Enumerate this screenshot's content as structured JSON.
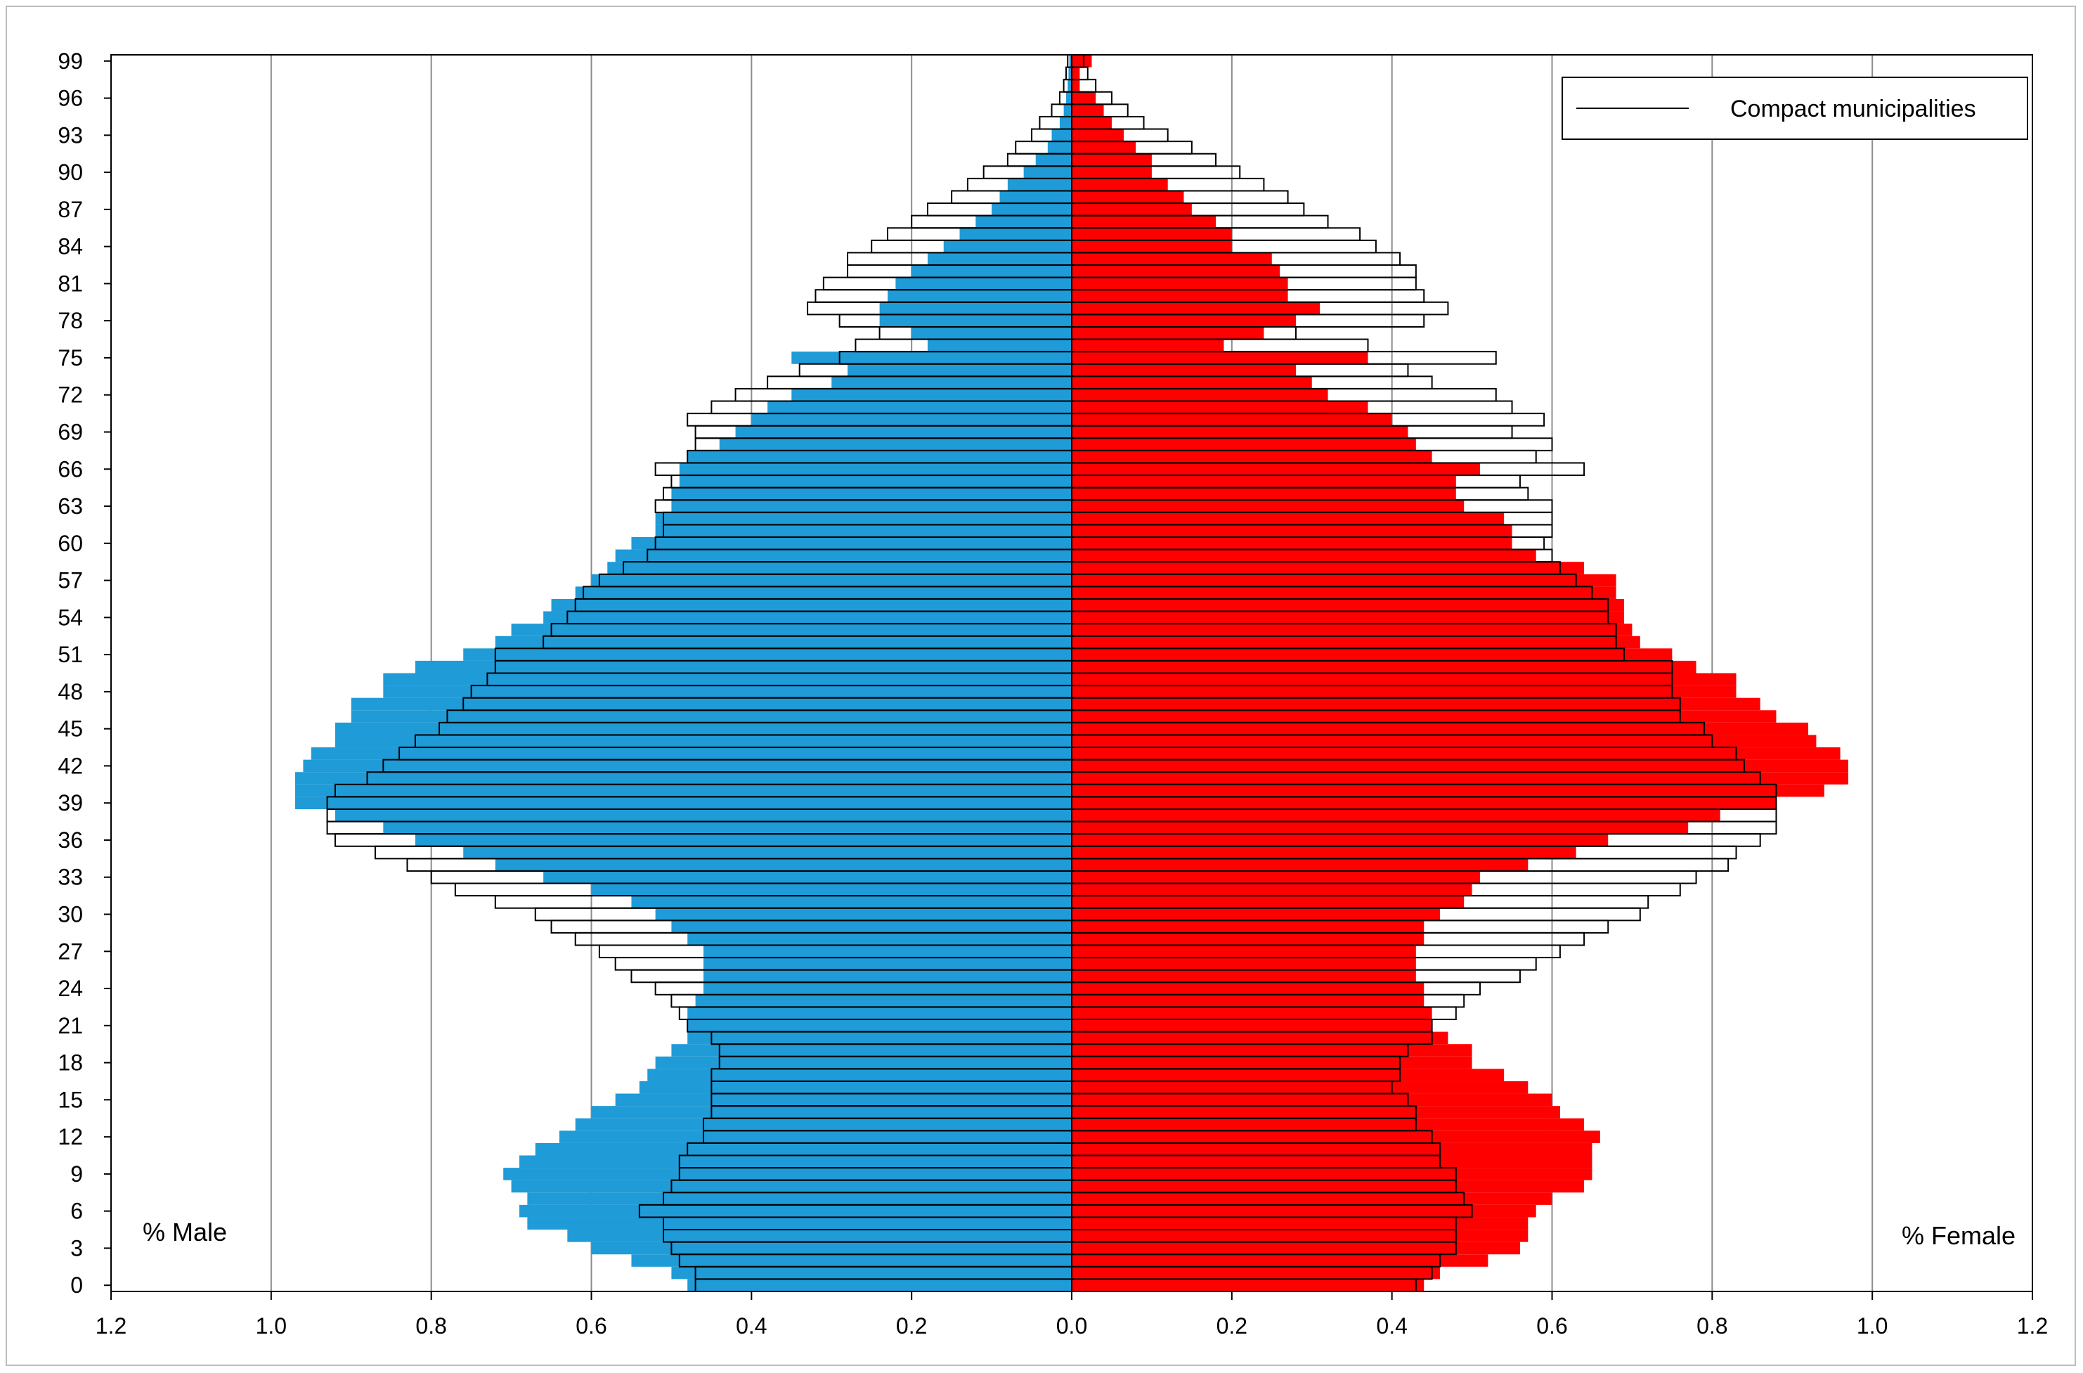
{
  "chart_data": {
    "type": "bar",
    "orientation": "horizontal",
    "categories": [
      0,
      1,
      2,
      3,
      4,
      5,
      6,
      7,
      8,
      9,
      10,
      11,
      12,
      13,
      14,
      15,
      16,
      17,
      18,
      19,
      20,
      21,
      22,
      23,
      24,
      25,
      26,
      27,
      28,
      29,
      30,
      31,
      32,
      33,
      34,
      35,
      36,
      37,
      38,
      39,
      40,
      41,
      42,
      43,
      44,
      45,
      46,
      47,
      48,
      49,
      50,
      51,
      52,
      53,
      54,
      55,
      56,
      57,
      58,
      59,
      60,
      61,
      62,
      63,
      64,
      65,
      66,
      67,
      68,
      69,
      70,
      71,
      72,
      73,
      74,
      75,
      76,
      77,
      78,
      79,
      80,
      81,
      82,
      83,
      84,
      85,
      86,
      87,
      88,
      89,
      90,
      91,
      92,
      93,
      94,
      95,
      96,
      97,
      98,
      99
    ],
    "y_tick_labels": [
      "0",
      "3",
      "6",
      "9",
      "12",
      "15",
      "18",
      "21",
      "24",
      "27",
      "30",
      "33",
      "36",
      "39",
      "42",
      "45",
      "48",
      "51",
      "54",
      "57",
      "60",
      "63",
      "66",
      "69",
      "72",
      "75",
      "78",
      "81",
      "84",
      "87",
      "90",
      "93",
      "96",
      "99"
    ],
    "x_tick_labels": [
      "1.2",
      "1.0",
      "0.8",
      "0.6",
      "0.4",
      "0.2",
      "0.0",
      "0.2",
      "0.4",
      "0.6",
      "0.8",
      "1.0",
      "1.2"
    ],
    "xlim": [
      -1.2,
      1.2
    ],
    "grid": "vertical",
    "legend_position": "top-right",
    "left_corner_label": "% Male",
    "right_corner_label": "% Female",
    "series": [
      {
        "role": "filled-male",
        "color": "#1f9bd7",
        "values": [
          0.48,
          0.5,
          0.55,
          0.6,
          0.63,
          0.68,
          0.69,
          0.68,
          0.7,
          0.71,
          0.69,
          0.67,
          0.64,
          0.62,
          0.6,
          0.57,
          0.54,
          0.53,
          0.52,
          0.5,
          0.48,
          0.48,
          0.48,
          0.47,
          0.46,
          0.46,
          0.46,
          0.46,
          0.48,
          0.5,
          0.52,
          0.55,
          0.6,
          0.66,
          0.72,
          0.76,
          0.82,
          0.86,
          0.92,
          0.97,
          0.97,
          0.97,
          0.96,
          0.95,
          0.92,
          0.92,
          0.9,
          0.9,
          0.86,
          0.86,
          0.82,
          0.76,
          0.72,
          0.7,
          0.66,
          0.65,
          0.62,
          0.6,
          0.58,
          0.57,
          0.55,
          0.52,
          0.52,
          0.5,
          0.5,
          0.49,
          0.49,
          0.48,
          0.44,
          0.42,
          0.4,
          0.38,
          0.35,
          0.3,
          0.28,
          0.35,
          0.18,
          0.2,
          0.24,
          0.24,
          0.23,
          0.22,
          0.2,
          0.18,
          0.16,
          0.14,
          0.12,
          0.1,
          0.09,
          0.08,
          0.06,
          0.045,
          0.03,
          0.025,
          0.015,
          0.01,
          0.007,
          0.005,
          0.004,
          0.003
        ]
      },
      {
        "role": "outline-male",
        "legend": "Compact municipalities",
        "color": "#000000",
        "values": [
          0.47,
          0.47,
          0.49,
          0.5,
          0.51,
          0.51,
          0.54,
          0.51,
          0.5,
          0.49,
          0.49,
          0.48,
          0.46,
          0.46,
          0.45,
          0.45,
          0.45,
          0.45,
          0.44,
          0.44,
          0.45,
          0.48,
          0.49,
          0.5,
          0.52,
          0.55,
          0.57,
          0.59,
          0.62,
          0.65,
          0.67,
          0.72,
          0.77,
          0.8,
          0.83,
          0.87,
          0.92,
          0.93,
          0.93,
          0.93,
          0.92,
          0.88,
          0.86,
          0.84,
          0.82,
          0.79,
          0.78,
          0.76,
          0.75,
          0.73,
          0.72,
          0.72,
          0.66,
          0.65,
          0.63,
          0.62,
          0.61,
          0.59,
          0.56,
          0.53,
          0.52,
          0.51,
          0.51,
          0.52,
          0.51,
          0.5,
          0.52,
          0.48,
          0.47,
          0.47,
          0.48,
          0.45,
          0.42,
          0.38,
          0.34,
          0.29,
          0.27,
          0.24,
          0.29,
          0.33,
          0.32,
          0.31,
          0.28,
          0.28,
          0.25,
          0.23,
          0.2,
          0.18,
          0.15,
          0.13,
          0.11,
          0.08,
          0.07,
          0.05,
          0.04,
          0.025,
          0.015,
          0.01,
          0.007,
          0.005
        ]
      },
      {
        "role": "filled-female",
        "color": "#ff0000",
        "values": [
          0.44,
          0.46,
          0.52,
          0.56,
          0.57,
          0.57,
          0.58,
          0.6,
          0.64,
          0.65,
          0.65,
          0.65,
          0.66,
          0.64,
          0.61,
          0.6,
          0.57,
          0.54,
          0.5,
          0.5,
          0.47,
          0.45,
          0.45,
          0.44,
          0.44,
          0.43,
          0.43,
          0.43,
          0.44,
          0.44,
          0.46,
          0.49,
          0.5,
          0.51,
          0.57,
          0.63,
          0.67,
          0.77,
          0.81,
          0.88,
          0.94,
          0.97,
          0.97,
          0.96,
          0.93,
          0.92,
          0.88,
          0.86,
          0.83,
          0.83,
          0.78,
          0.75,
          0.71,
          0.7,
          0.69,
          0.69,
          0.68,
          0.68,
          0.64,
          0.58,
          0.55,
          0.55,
          0.54,
          0.49,
          0.48,
          0.48,
          0.51,
          0.45,
          0.43,
          0.42,
          0.4,
          0.37,
          0.32,
          0.3,
          0.28,
          0.37,
          0.19,
          0.24,
          0.28,
          0.31,
          0.27,
          0.27,
          0.26,
          0.25,
          0.2,
          0.2,
          0.18,
          0.15,
          0.14,
          0.12,
          0.1,
          0.1,
          0.08,
          0.065,
          0.05,
          0.04,
          0.03,
          0.01,
          0.01,
          0.025
        ]
      },
      {
        "role": "outline-female",
        "color": "#000000",
        "values": [
          0.43,
          0.45,
          0.46,
          0.48,
          0.48,
          0.48,
          0.5,
          0.49,
          0.48,
          0.48,
          0.46,
          0.46,
          0.45,
          0.43,
          0.43,
          0.42,
          0.4,
          0.41,
          0.41,
          0.42,
          0.45,
          0.45,
          0.48,
          0.49,
          0.51,
          0.56,
          0.58,
          0.61,
          0.64,
          0.67,
          0.71,
          0.72,
          0.76,
          0.78,
          0.82,
          0.83,
          0.86,
          0.88,
          0.88,
          0.88,
          0.88,
          0.86,
          0.84,
          0.83,
          0.8,
          0.79,
          0.76,
          0.76,
          0.75,
          0.75,
          0.75,
          0.69,
          0.68,
          0.68,
          0.67,
          0.67,
          0.65,
          0.63,
          0.61,
          0.6,
          0.59,
          0.6,
          0.6,
          0.6,
          0.57,
          0.56,
          0.64,
          0.58,
          0.6,
          0.55,
          0.59,
          0.55,
          0.53,
          0.45,
          0.42,
          0.53,
          0.37,
          0.28,
          0.44,
          0.47,
          0.44,
          0.43,
          0.43,
          0.41,
          0.38,
          0.36,
          0.32,
          0.29,
          0.27,
          0.24,
          0.21,
          0.18,
          0.15,
          0.12,
          0.09,
          0.07,
          0.05,
          0.03,
          0.02,
          0.015
        ]
      }
    ]
  }
}
